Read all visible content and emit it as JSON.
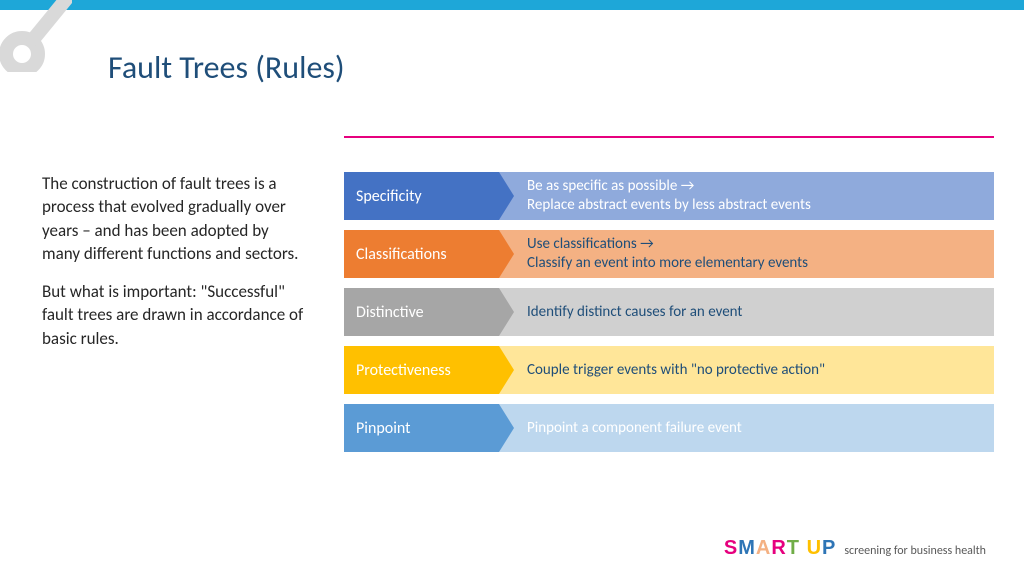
{
  "colors": {
    "top_bar": "#1ea7d8",
    "title": "#1f4e79",
    "red_hr": "#e6007e",
    "body_text": "#262626",
    "deco_gray": "#d9d9d9",
    "tagline": "#595959"
  },
  "title": "Fault Trees (Rules)",
  "paragraphs": [
    "The construction of fault trees is a process that evolved gradually over years – and has been adopted by many different functions and sectors.",
    "But what is important: \"Successful\" fault trees are drawn in accordance of basic rules."
  ],
  "rules": [
    {
      "label": "Specificity",
      "desc_line1": "Be as specific as possible →",
      "desc_line2": "Replace abstract events by less abstract events",
      "label_bg": "#4472c4",
      "desc_bg": "#8faadc",
      "desc_color": "#ffffff"
    },
    {
      "label": "Classifications",
      "desc_line1": "Use classifications →",
      "desc_line2": "Classify an event into more elementary events",
      "label_bg": "#ed7d31",
      "desc_bg": "#f4b183",
      "desc_color": "#1f4e79"
    },
    {
      "label": "Distinctive",
      "desc_line1": "Identify distinct causes for an event",
      "desc_line2": "",
      "label_bg": "#a6a6a6",
      "desc_bg": "#d0d0d0",
      "desc_color": "#1f4e79"
    },
    {
      "label": "Protectiveness",
      "desc_line1": "Couple trigger events with \"no protective action\"",
      "desc_line2": "",
      "label_bg": "#ffc000",
      "desc_bg": "#ffe699",
      "desc_color": "#1f4e79"
    },
    {
      "label": "Pinpoint",
      "desc_line1": "Pinpoint a component failure event",
      "desc_line2": "",
      "label_bg": "#5b9bd5",
      "desc_bg": "#bdd7ee",
      "desc_color": "#ffffff"
    }
  ],
  "brand": {
    "s": "S",
    "m": "M",
    "a": "A",
    "r": "R",
    "t": "T",
    "sp": " ",
    "u": "U",
    "p": "P",
    "s_c": "#e6007e",
    "m_c": "#2e75b6",
    "a_c": "#f4b183",
    "r_c": "#e6007e",
    "t_c": "#70ad47",
    "u_c": "#ffc000",
    "p_c": "#2e75b6"
  },
  "tagline": "screening for business health"
}
